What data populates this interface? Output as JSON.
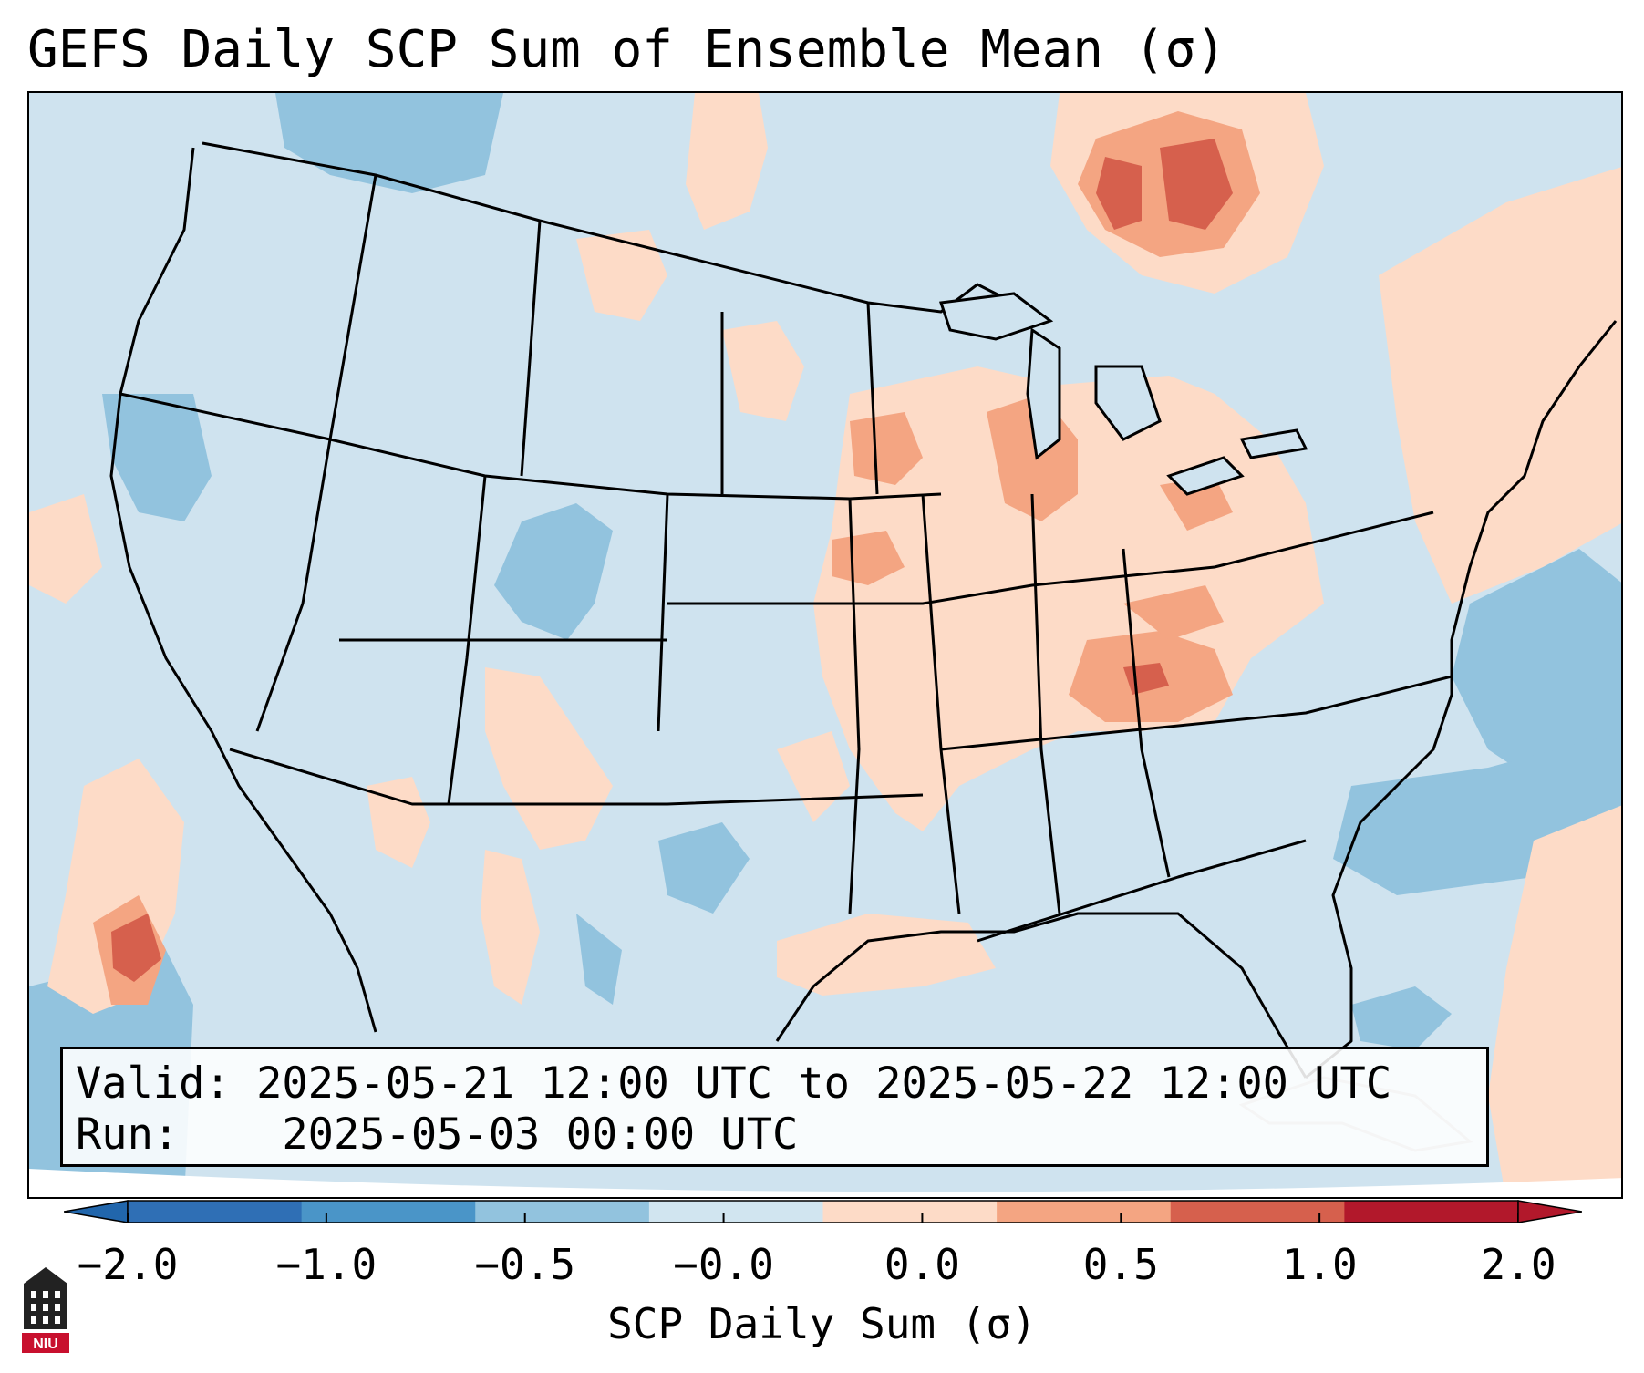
{
  "title": "GEFS Daily SCP Sum of Ensemble Mean (σ)",
  "info": {
    "valid_label": "Valid:",
    "valid_value": "2025-05-21 12:00 UTC to 2025-05-22 12:00 UTC",
    "run_label": "Run:",
    "run_value": "2025-05-03 00:00 UTC"
  },
  "colorbar": {
    "label": "SCP Daily Sum (σ)",
    "ticks": [
      "−2.0",
      "−1.0",
      "−0.5",
      "−0.0",
      "0.0",
      "0.5",
      "1.0",
      "2.0"
    ],
    "colors": [
      "#2f6fb5",
      "#4a95c8",
      "#92c3de",
      "#d1e5f0",
      "#fddbc7",
      "#f4a582",
      "#d6604d",
      "#b2182b"
    ],
    "extend_low_color": "#2166ac",
    "extend_high_color": "#b2182b"
  },
  "map": {
    "background_color": "#cfe3ef",
    "region": "Continental United States",
    "positive_color": "#fddbc7",
    "strong_positive_color": "#f4a582",
    "max_positive_color": "#d6604d",
    "negative_color": "#92c3de"
  },
  "logo": {
    "text": "NIU",
    "color": "#c8102e"
  }
}
